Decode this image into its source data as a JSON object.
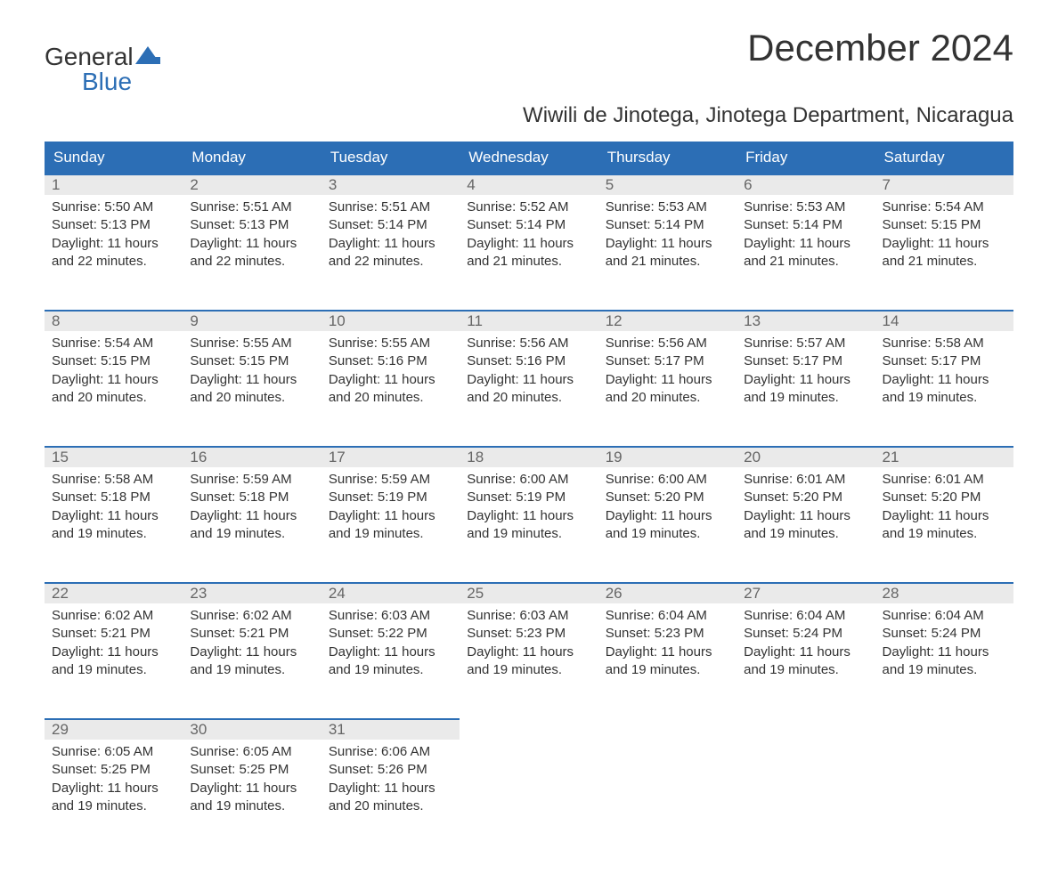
{
  "logo": {
    "text1": "General",
    "text2": "Blue",
    "accent_color": "#2c6eb5"
  },
  "title": "December 2024",
  "subtitle": "Wiwili de Jinotega, Jinotega Department, Nicaragua",
  "colors": {
    "header_bg": "#2c6eb5",
    "header_text": "#ffffff",
    "daynum_bg": "#eaeaea",
    "daynum_text": "#666666",
    "body_text": "#333333",
    "border": "#2c6eb5"
  },
  "day_headers": [
    "Sunday",
    "Monday",
    "Tuesday",
    "Wednesday",
    "Thursday",
    "Friday",
    "Saturday"
  ],
  "weeks": [
    [
      {
        "num": "1",
        "sunrise": "Sunrise: 5:50 AM",
        "sunset": "Sunset: 5:13 PM",
        "daylight": "Daylight: 11 hours and 22 minutes."
      },
      {
        "num": "2",
        "sunrise": "Sunrise: 5:51 AM",
        "sunset": "Sunset: 5:13 PM",
        "daylight": "Daylight: 11 hours and 22 minutes."
      },
      {
        "num": "3",
        "sunrise": "Sunrise: 5:51 AM",
        "sunset": "Sunset: 5:14 PM",
        "daylight": "Daylight: 11 hours and 22 minutes."
      },
      {
        "num": "4",
        "sunrise": "Sunrise: 5:52 AM",
        "sunset": "Sunset: 5:14 PM",
        "daylight": "Daylight: 11 hours and 21 minutes."
      },
      {
        "num": "5",
        "sunrise": "Sunrise: 5:53 AM",
        "sunset": "Sunset: 5:14 PM",
        "daylight": "Daylight: 11 hours and 21 minutes."
      },
      {
        "num": "6",
        "sunrise": "Sunrise: 5:53 AM",
        "sunset": "Sunset: 5:14 PM",
        "daylight": "Daylight: 11 hours and 21 minutes."
      },
      {
        "num": "7",
        "sunrise": "Sunrise: 5:54 AM",
        "sunset": "Sunset: 5:15 PM",
        "daylight": "Daylight: 11 hours and 21 minutes."
      }
    ],
    [
      {
        "num": "8",
        "sunrise": "Sunrise: 5:54 AM",
        "sunset": "Sunset: 5:15 PM",
        "daylight": "Daylight: 11 hours and 20 minutes."
      },
      {
        "num": "9",
        "sunrise": "Sunrise: 5:55 AM",
        "sunset": "Sunset: 5:15 PM",
        "daylight": "Daylight: 11 hours and 20 minutes."
      },
      {
        "num": "10",
        "sunrise": "Sunrise: 5:55 AM",
        "sunset": "Sunset: 5:16 PM",
        "daylight": "Daylight: 11 hours and 20 minutes."
      },
      {
        "num": "11",
        "sunrise": "Sunrise: 5:56 AM",
        "sunset": "Sunset: 5:16 PM",
        "daylight": "Daylight: 11 hours and 20 minutes."
      },
      {
        "num": "12",
        "sunrise": "Sunrise: 5:56 AM",
        "sunset": "Sunset: 5:17 PM",
        "daylight": "Daylight: 11 hours and 20 minutes."
      },
      {
        "num": "13",
        "sunrise": "Sunrise: 5:57 AM",
        "sunset": "Sunset: 5:17 PM",
        "daylight": "Daylight: 11 hours and 19 minutes."
      },
      {
        "num": "14",
        "sunrise": "Sunrise: 5:58 AM",
        "sunset": "Sunset: 5:17 PM",
        "daylight": "Daylight: 11 hours and 19 minutes."
      }
    ],
    [
      {
        "num": "15",
        "sunrise": "Sunrise: 5:58 AM",
        "sunset": "Sunset: 5:18 PM",
        "daylight": "Daylight: 11 hours and 19 minutes."
      },
      {
        "num": "16",
        "sunrise": "Sunrise: 5:59 AM",
        "sunset": "Sunset: 5:18 PM",
        "daylight": "Daylight: 11 hours and 19 minutes."
      },
      {
        "num": "17",
        "sunrise": "Sunrise: 5:59 AM",
        "sunset": "Sunset: 5:19 PM",
        "daylight": "Daylight: 11 hours and 19 minutes."
      },
      {
        "num": "18",
        "sunrise": "Sunrise: 6:00 AM",
        "sunset": "Sunset: 5:19 PM",
        "daylight": "Daylight: 11 hours and 19 minutes."
      },
      {
        "num": "19",
        "sunrise": "Sunrise: 6:00 AM",
        "sunset": "Sunset: 5:20 PM",
        "daylight": "Daylight: 11 hours and 19 minutes."
      },
      {
        "num": "20",
        "sunrise": "Sunrise: 6:01 AM",
        "sunset": "Sunset: 5:20 PM",
        "daylight": "Daylight: 11 hours and 19 minutes."
      },
      {
        "num": "21",
        "sunrise": "Sunrise: 6:01 AM",
        "sunset": "Sunset: 5:20 PM",
        "daylight": "Daylight: 11 hours and 19 minutes."
      }
    ],
    [
      {
        "num": "22",
        "sunrise": "Sunrise: 6:02 AM",
        "sunset": "Sunset: 5:21 PM",
        "daylight": "Daylight: 11 hours and 19 minutes."
      },
      {
        "num": "23",
        "sunrise": "Sunrise: 6:02 AM",
        "sunset": "Sunset: 5:21 PM",
        "daylight": "Daylight: 11 hours and 19 minutes."
      },
      {
        "num": "24",
        "sunrise": "Sunrise: 6:03 AM",
        "sunset": "Sunset: 5:22 PM",
        "daylight": "Daylight: 11 hours and 19 minutes."
      },
      {
        "num": "25",
        "sunrise": "Sunrise: 6:03 AM",
        "sunset": "Sunset: 5:23 PM",
        "daylight": "Daylight: 11 hours and 19 minutes."
      },
      {
        "num": "26",
        "sunrise": "Sunrise: 6:04 AM",
        "sunset": "Sunset: 5:23 PM",
        "daylight": "Daylight: 11 hours and 19 minutes."
      },
      {
        "num": "27",
        "sunrise": "Sunrise: 6:04 AM",
        "sunset": "Sunset: 5:24 PM",
        "daylight": "Daylight: 11 hours and 19 minutes."
      },
      {
        "num": "28",
        "sunrise": "Sunrise: 6:04 AM",
        "sunset": "Sunset: 5:24 PM",
        "daylight": "Daylight: 11 hours and 19 minutes."
      }
    ],
    [
      {
        "num": "29",
        "sunrise": "Sunrise: 6:05 AM",
        "sunset": "Sunset: 5:25 PM",
        "daylight": "Daylight: 11 hours and 19 minutes."
      },
      {
        "num": "30",
        "sunrise": "Sunrise: 6:05 AM",
        "sunset": "Sunset: 5:25 PM",
        "daylight": "Daylight: 11 hours and 19 minutes."
      },
      {
        "num": "31",
        "sunrise": "Sunrise: 6:06 AM",
        "sunset": "Sunset: 5:26 PM",
        "daylight": "Daylight: 11 hours and 20 minutes."
      },
      null,
      null,
      null,
      null
    ]
  ]
}
